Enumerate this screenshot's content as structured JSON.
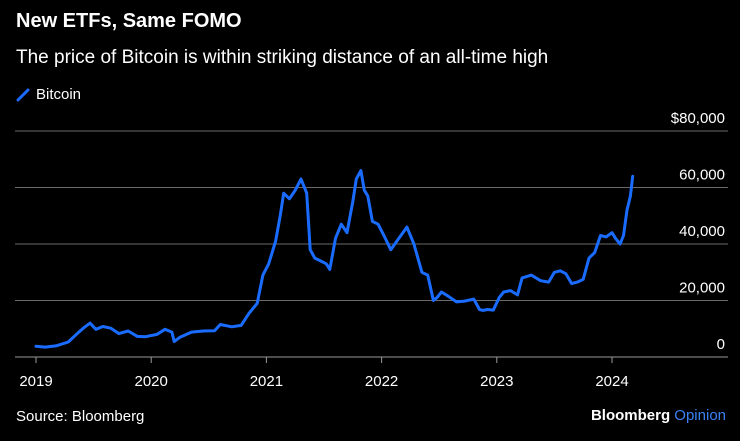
{
  "header": {
    "title": "New ETFs, Same FOMO",
    "subtitle": "The price of Bitcoin is within striking distance of an all-time high"
  },
  "footer": {
    "source": "Source: Bloomberg",
    "brand": "Bloomberg",
    "brand_suffix": "Opinion"
  },
  "colors": {
    "background": "#000000",
    "line": "#1a6cff",
    "grid": "#6a6a6a",
    "text": "#ffffff",
    "brand_accent": "#3b82f6"
  },
  "chart_data": {
    "type": "line",
    "title": "New ETFs, Same FOMO",
    "subtitle": "The price of Bitcoin is within striking distance of an all-time high",
    "legend": [
      "Bitcoin"
    ],
    "legend_position": "top-left",
    "xlabel": "",
    "ylabel": "",
    "xlim": [
      2019.0,
      2024.85
    ],
    "ylim": [
      0,
      80000
    ],
    "grid": true,
    "x_ticks": [
      2019,
      2020,
      2021,
      2022,
      2023,
      2024
    ],
    "x_tick_labels": [
      "2019",
      "2020",
      "2021",
      "2022",
      "2023",
      "2024"
    ],
    "y_ticks": [
      0,
      20000,
      40000,
      60000,
      80000
    ],
    "y_tick_labels": [
      "0",
      "20,000",
      "40,000",
      "60,000",
      "$80,000"
    ],
    "series": [
      {
        "name": "Bitcoin",
        "x": [
          2019.0,
          2019.08,
          2019.18,
          2019.28,
          2019.35,
          2019.42,
          2019.47,
          2019.52,
          2019.58,
          2019.65,
          2019.72,
          2019.8,
          2019.88,
          2019.95,
          2020.05,
          2020.12,
          2020.18,
          2020.2,
          2020.25,
          2020.35,
          2020.45,
          2020.55,
          2020.6,
          2020.7,
          2020.78,
          2020.85,
          2020.92,
          2020.97,
          2021.02,
          2021.08,
          2021.12,
          2021.15,
          2021.2,
          2021.25,
          2021.3,
          2021.35,
          2021.38,
          2021.42,
          2021.47,
          2021.52,
          2021.55,
          2021.6,
          2021.65,
          2021.7,
          2021.75,
          2021.78,
          2021.82,
          2021.85,
          2021.88,
          2021.92,
          2021.97,
          2022.02,
          2022.08,
          2022.15,
          2022.22,
          2022.28,
          2022.35,
          2022.4,
          2022.45,
          2022.48,
          2022.52,
          2022.58,
          2022.65,
          2022.72,
          2022.8,
          2022.85,
          2022.88,
          2022.92,
          2022.97,
          2023.02,
          2023.06,
          2023.12,
          2023.18,
          2023.22,
          2023.3,
          2023.38,
          2023.45,
          2023.5,
          2023.55,
          2023.6,
          2023.65,
          2023.7,
          2023.75,
          2023.8,
          2023.85,
          2023.9,
          2023.95,
          2024.0,
          2024.03,
          2024.07,
          2024.1,
          2024.13,
          2024.16,
          2024.18
        ],
        "values": [
          3800,
          3500,
          4000,
          5300,
          8000,
          10500,
          12000,
          9800,
          10800,
          10200,
          8300,
          9200,
          7300,
          7200,
          8000,
          9800,
          8800,
          5500,
          7000,
          8800,
          9200,
          9300,
          11500,
          10700,
          11200,
          15500,
          19000,
          29000,
          33000,
          41000,
          50000,
          58000,
          56000,
          59000,
          63000,
          58000,
          38000,
          35000,
          34000,
          33000,
          31000,
          42000,
          47000,
          44000,
          55000,
          63000,
          66000,
          59000,
          57000,
          48000,
          47000,
          43000,
          38000,
          42000,
          46000,
          40000,
          30000,
          29000,
          20000,
          21000,
          23000,
          21500,
          19500,
          19800,
          20500,
          16800,
          16500,
          16800,
          16600,
          21000,
          23000,
          23500,
          22000,
          28000,
          29000,
          27000,
          26500,
          30000,
          30500,
          29500,
          26000,
          26500,
          27500,
          35000,
          37000,
          43000,
          42500,
          44000,
          42000,
          40000,
          43000,
          52000,
          57000,
          64000
        ]
      }
    ]
  }
}
